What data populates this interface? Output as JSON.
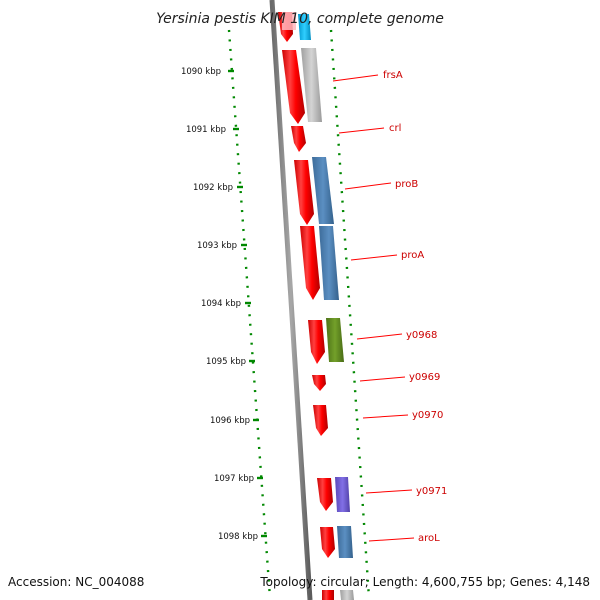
{
  "title": "Yersinia pestis KIM 10, complete genome",
  "accession": "Accession: NC_004088",
  "summary": "Topology: circular; Length: 4,600,755 bp; Genes: 4,148",
  "kbp_labels": [
    "1090 kbp",
    "1091 kbp",
    "1092 kbp",
    "1093 kbp",
    "1094 kbp",
    "1095 kbp",
    "1096 kbp",
    "1097 kbp",
    "1098 kbp"
  ],
  "genes": [
    "frsA",
    "crl",
    "proB",
    "proA",
    "y0968",
    "y0969",
    "y0970",
    "y0971",
    "aroL"
  ],
  "colors": {
    "cds": "#ff0000",
    "label": "#cc0000",
    "backbone": "#808080",
    "gc_skew": "#008800",
    "blue_gene": "#4a7fb5",
    "cyan_gene": "#00b4f0",
    "grey_gene": "#b8b8b8",
    "olive_gene": "#5f8a1e",
    "purple_gene": "#6f5bd0"
  }
}
